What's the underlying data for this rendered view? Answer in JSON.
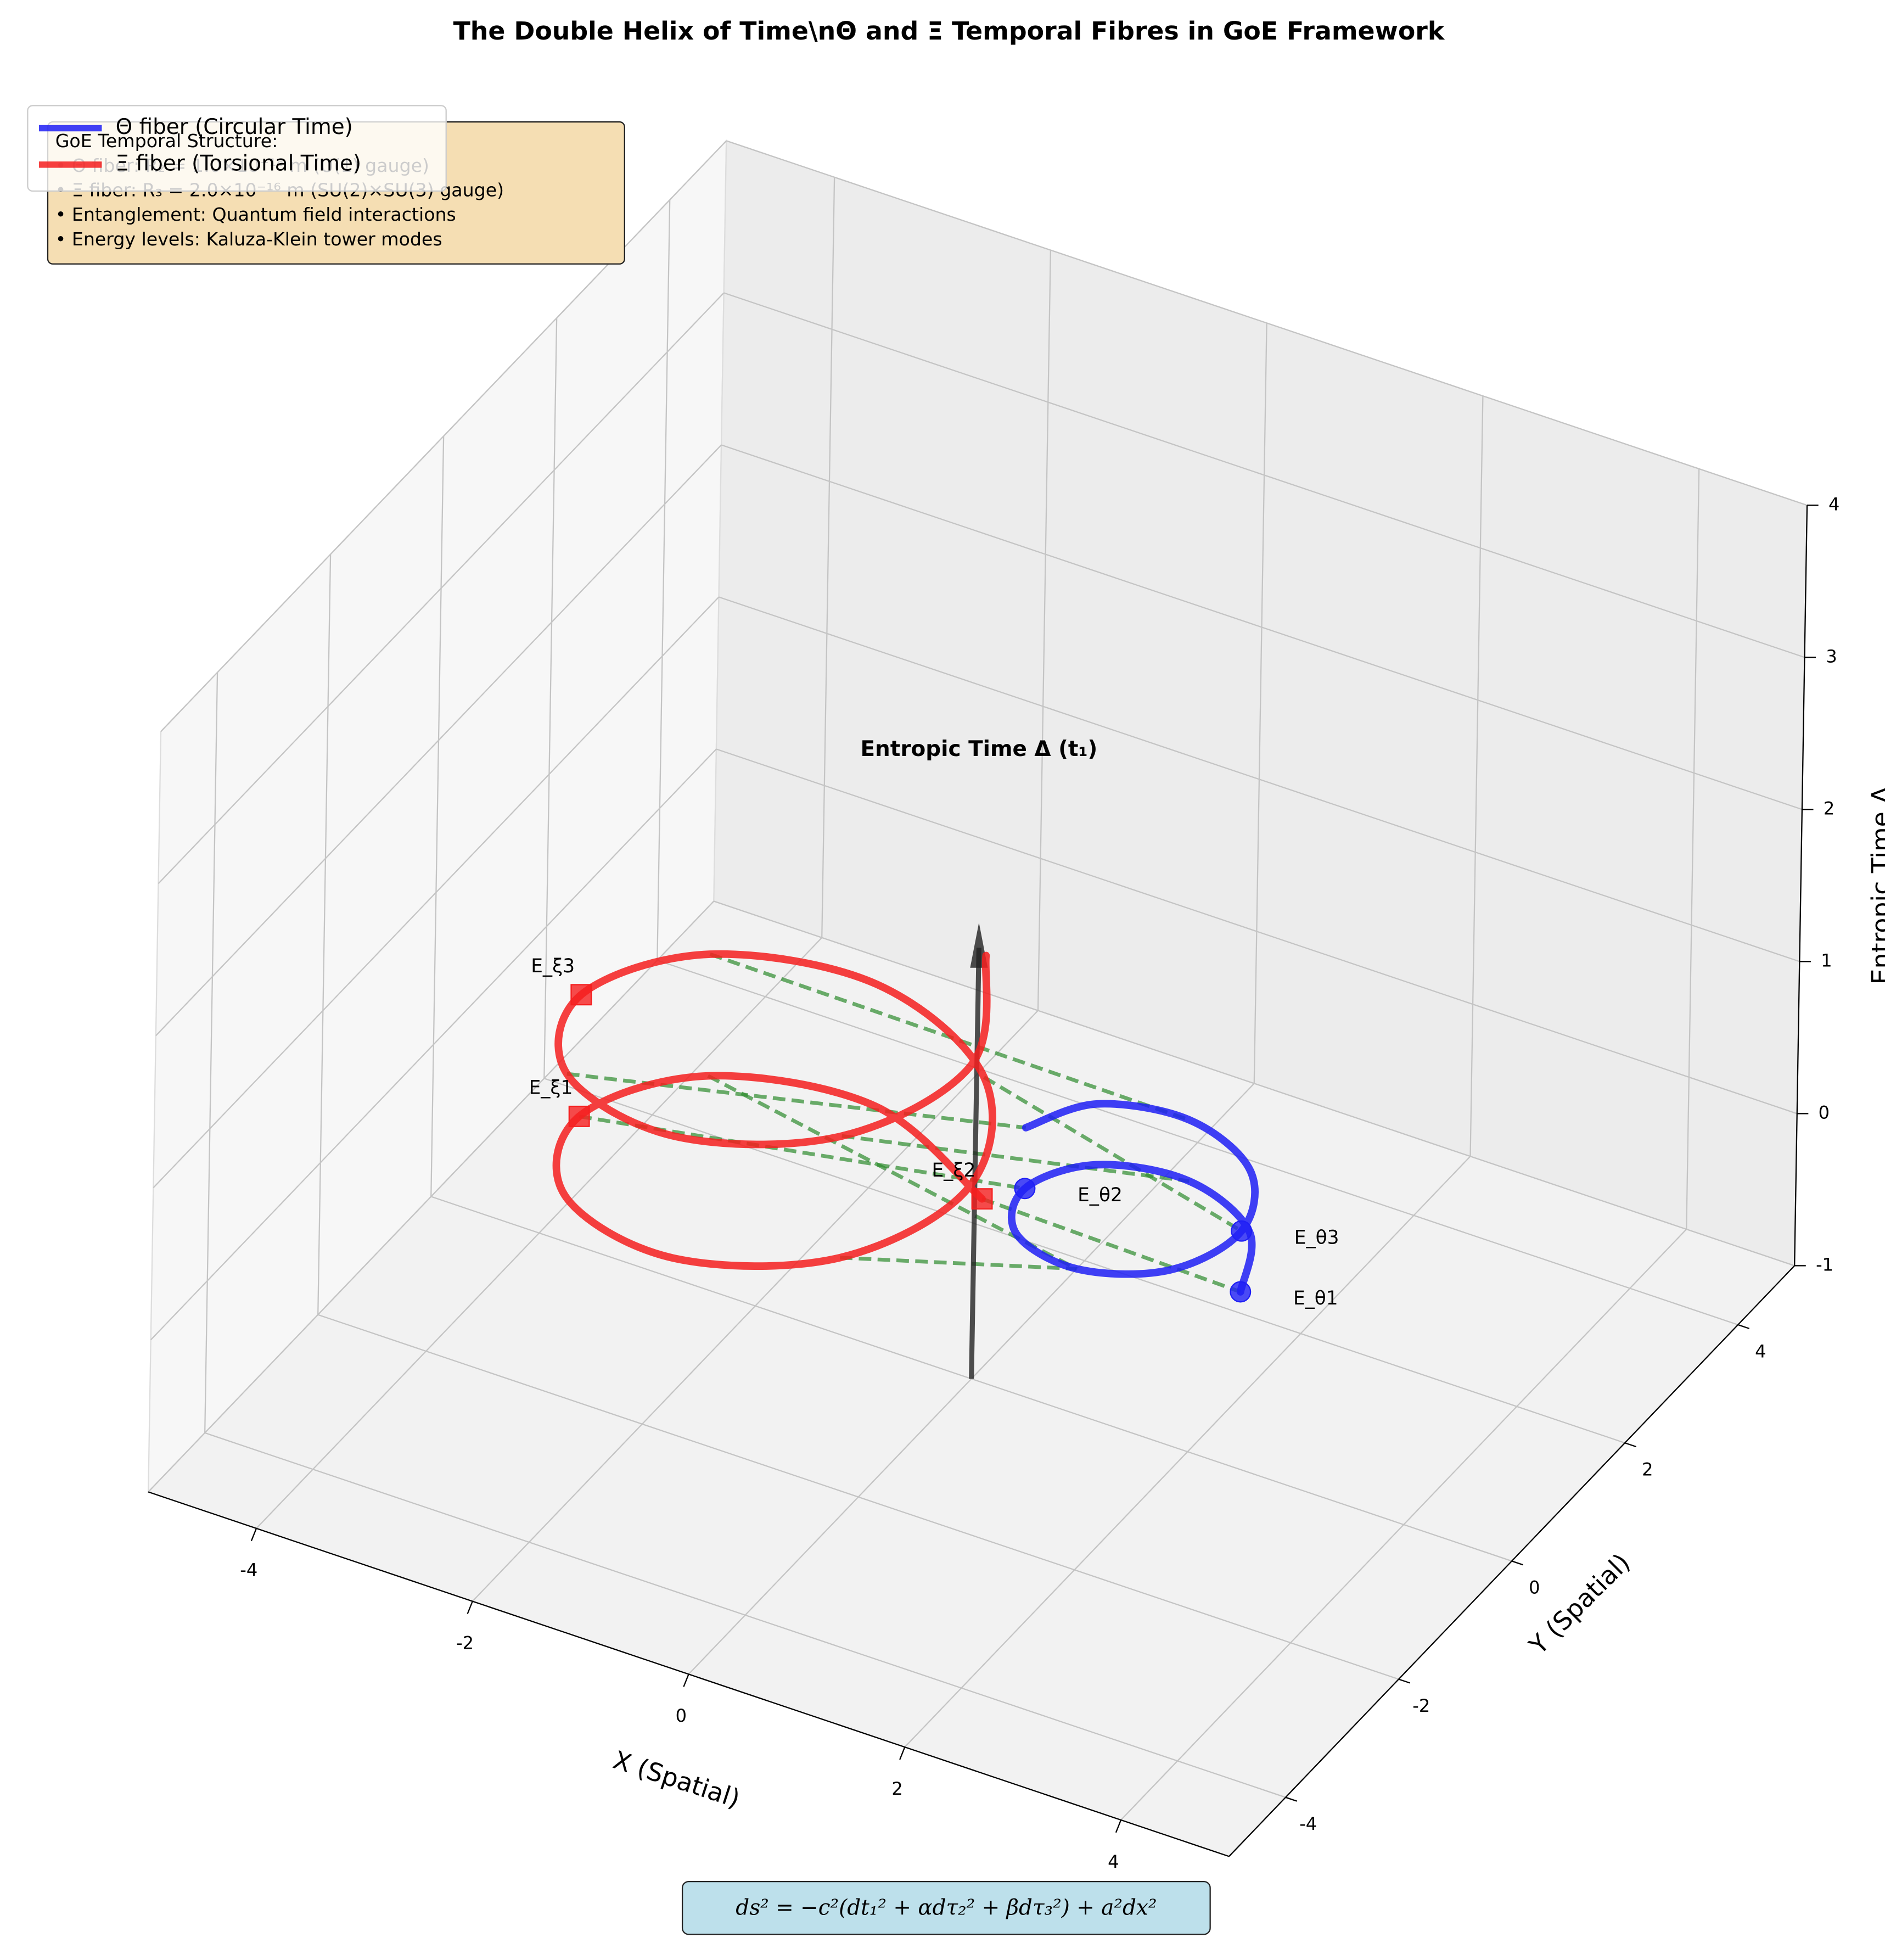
{
  "chart_data": {
    "type": "line3d",
    "title": "The Double Helix of Time\\nΘ and Ξ Temporal Fibres in GoE Framework",
    "x_label": "X (Spatial)",
    "y_label": "Y (Spatial)",
    "z_label": "Entropic Time Δ",
    "xlim": [
      -5,
      5
    ],
    "ylim": [
      -5,
      5
    ],
    "zlim": [
      -1,
      4
    ],
    "xticks": [
      -4,
      -2,
      0,
      2,
      4
    ],
    "yticks": [
      -4,
      -2,
      0,
      2,
      4
    ],
    "zticks": [
      -1,
      0,
      1,
      2,
      3,
      4
    ],
    "grid": true,
    "legend": "upper left",
    "series": [
      {
        "name": "Θ fiber (Circular Time)",
        "color": "#1f1ff5",
        "x": [
          1.9,
          1.61,
          0.9,
          0.19,
          -0.1,
          0.19,
          0.9,
          1.61,
          1.9,
          1.61,
          0.9,
          0.19,
          -0.1
        ],
        "y": [
          1.1,
          1.81,
          2.1,
          1.81,
          1.1,
          0.39,
          0.1,
          0.39,
          1.1,
          1.81,
          2.1,
          1.81,
          1.1
        ],
        "z": [
          -0.4,
          -0.35,
          -0.3,
          -0.25,
          -0.2,
          -0.15,
          -0.1,
          -0.05,
          0,
          0.05,
          0.1,
          0.15,
          0.2
        ],
        "energy_levels": [
          {
            "label": "E_θ1",
            "x": 1.9,
            "y": 1.1,
            "z": -0.4
          },
          {
            "label": "E_θ2",
            "x": -0.1,
            "y": 1.1,
            "z": -0.2
          },
          {
            "label": "E_θ3",
            "x": 1.9,
            "y": 1.1,
            "z": 0
          }
        ]
      },
      {
        "name": "Ξ fiber (Torsional Time)",
        "color": "#f51f1f",
        "x": [
          -0.63,
          -1.9,
          -3.17,
          -3.7,
          -3.17,
          -1.9,
          -0.63,
          -0.1,
          -0.63,
          -1.9,
          -3.17,
          -3.7,
          -3.17,
          -1.9,
          -0.63,
          -0.1,
          -0.63
        ],
        "y": [
          1.37,
          1.9,
          1.37,
          0.1,
          -1.17,
          -1.7,
          -1.17,
          0.1,
          1.37,
          1.9,
          1.37,
          0.1,
          -1.17,
          -1.7,
          -1.17,
          0.1,
          1.37
        ],
        "z": [
          -0.5,
          -0.4,
          -0.3,
          -0.2,
          -0.1,
          0,
          0.1,
          0.2,
          0.3,
          0.4,
          0.5,
          0.6,
          0.7,
          0.8,
          0.9,
          1.0,
          1.1
        ],
        "energy_levels": [
          {
            "label": "E_ξ1",
            "x": -3.7,
            "y": 0.1,
            "z": -0.2
          },
          {
            "label": "E_ξ2",
            "x": -0.63,
            "y": 1.37,
            "z": -0.5
          },
          {
            "label": "E_ξ3",
            "x": -3.7,
            "y": 0.1,
            "z": 0.6
          }
        ]
      }
    ],
    "entanglement": {
      "color": "#2e8b2e",
      "pairs": [
        [
          0,
          0
        ],
        [
          3,
          4
        ],
        [
          6,
          6
        ],
        [
          8,
          8
        ],
        [
          10,
          10
        ],
        [
          12,
          12
        ],
        [
          14,
          2
        ],
        [
          2,
          6
        ]
      ]
    },
    "arrow": {
      "label": "Entropic Time Δ (t₁)",
      "start": [
        0,
        0,
        -1
      ],
      "end": [
        0,
        0,
        2
      ]
    },
    "info_box": {
      "lines": [
        "GoE Temporal Structure:",
        "• Θ fiber: R₂ = 1.0×10⁻¹⁸ m (U(1) gauge)",
        "• Ξ fiber: R₃ = 2.0×10⁻¹⁶ m (SU(2)×SU(3) gauge)",
        "• Entanglement: Quantum field interactions",
        "• Energy levels: Kaluza-Klein tower modes"
      ]
    },
    "formula": "ds² = −c²(dt₁² + αdτ₂² + βdτ₃²) + a²dx²"
  }
}
